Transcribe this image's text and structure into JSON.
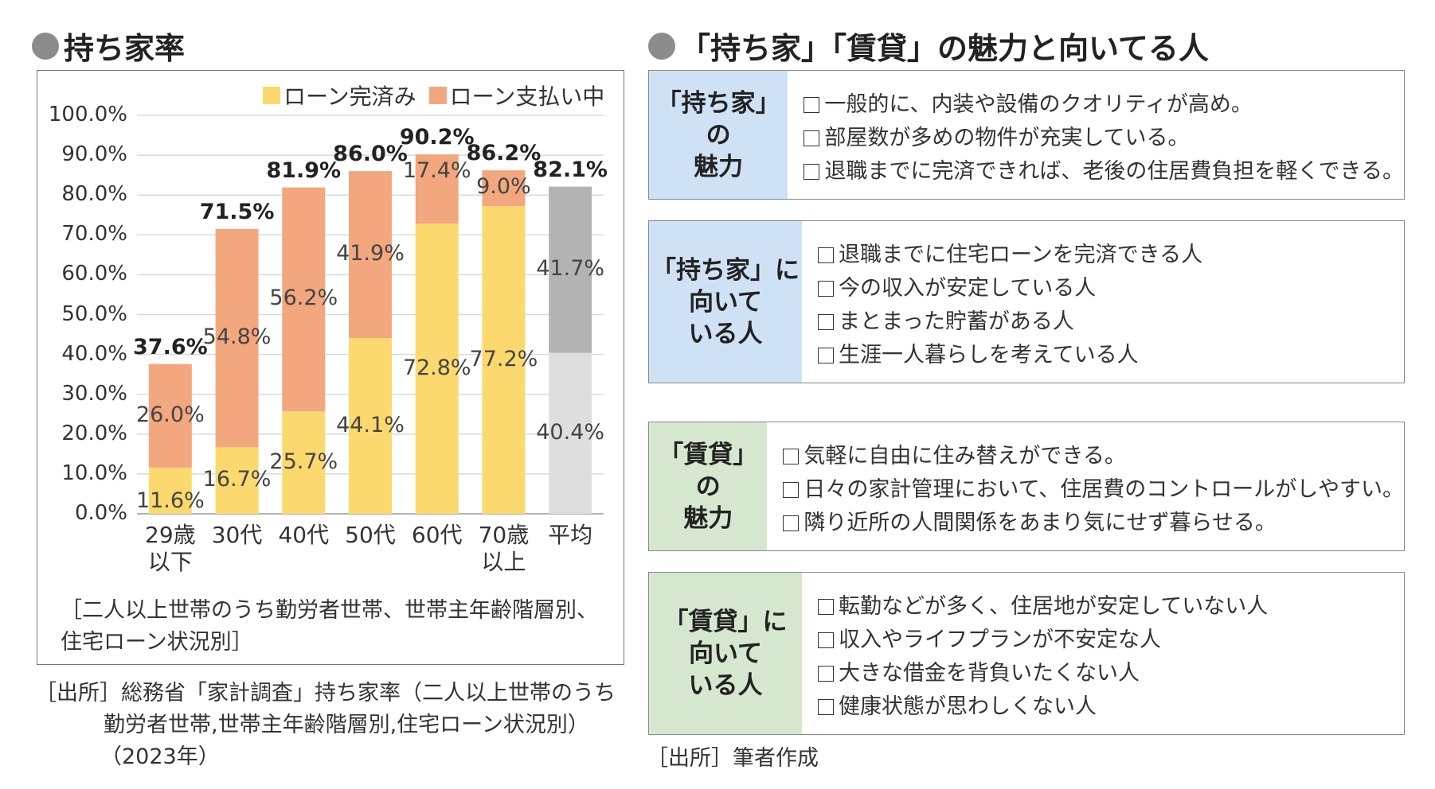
{
  "left_title": "持ち家率",
  "right_title": "「持ち家」「賃貸」の魅力と向いてる人",
  "chart_data": {
    "type": "bar",
    "stacked": true,
    "categories": [
      "29歳以下",
      "30代",
      "40代",
      "50代",
      "60代",
      "70歳以上",
      "平均"
    ],
    "category_lines": [
      [
        "29歳",
        "以下"
      ],
      [
        "30代"
      ],
      [
        "40代"
      ],
      [
        "50代"
      ],
      [
        "60代"
      ],
      [
        "70歳",
        "以上"
      ],
      [
        "平均"
      ]
    ],
    "series": [
      {
        "name": "ローン完済み",
        "values": [
          11.6,
          16.7,
          25.7,
          44.1,
          72.8,
          77.2,
          40.4
        ],
        "labels": [
          "11.6%",
          "16.7%",
          "25.7%",
          "44.1%",
          "72.8%",
          "77.2%",
          "40.4%"
        ]
      },
      {
        "name": "ローン支払い中",
        "values": [
          26.0,
          54.8,
          56.2,
          41.9,
          17.4,
          9.0,
          41.7
        ],
        "labels": [
          "26.0%",
          "54.8%",
          "56.2%",
          "41.9%",
          "17.4%",
          "9.0%",
          "41.7%"
        ]
      }
    ],
    "totals": [
      "37.6%",
      "71.5%",
      "81.9%",
      "86.0%",
      "90.2%",
      "86.2%",
      "82.1%"
    ],
    "yticks": [
      "100.0%",
      "90.0%",
      "80.0%",
      "70.0%",
      "60.0%",
      "50.0%",
      "40.0%",
      "30.0%",
      "20.0%",
      "10.0%",
      "0.0%"
    ],
    "ylim": [
      0,
      100
    ],
    "grid": true,
    "legend": "top-right",
    "colors": {
      "paid": "#fcd96e",
      "paying": "#f2a77e",
      "avg_paid": "#dedede",
      "avg_paying": "#b3b3b3"
    }
  },
  "chart_note": [
    "［二人以上世帯のうち勤労者世帯、世帯主年齢階層別、",
    "住宅ローン状況別］"
  ],
  "source_left": [
    "［出所］総務省「家計調査」持ち家率（二人以上世帯のうち",
    "勤労者世帯,世帯主年齢階層別,住宅ローン状況別）",
    "（2023年）"
  ],
  "cards": [
    {
      "head": [
        "「持ち家」の",
        "魅力"
      ],
      "items": [
        "一般的に、内装や設備のクオリティが高め。",
        "部屋数が多めの物件が充実している。",
        "退職までに完済できれば、老後の住居費負担を軽くできる。"
      ]
    },
    {
      "head": [
        "「持ち家」に",
        "向いて",
        "いる人"
      ],
      "items": [
        "退職までに住宅ローンを完済できる人",
        "今の収入が安定している人",
        "まとまった貯蓄がある人",
        "生涯一人暮らしを考えている人"
      ]
    },
    {
      "head": [
        "「賃貸」の",
        "魅力"
      ],
      "items": [
        "気軽に自由に住み替えができる。",
        "日々の家計管理において、住居費のコントロールがしやすい。",
        "隣り近所の人間関係をあまり気にせず暮らせる。"
      ]
    },
    {
      "head": [
        "「賃貸」に",
        "向いて",
        "いる人"
      ],
      "items": [
        "転勤などが多く、住居地が安定していない人",
        "収入やライフプランが不安定な人",
        "大きな借金を背負いたくない人",
        "健康状態が思わしくない人"
      ]
    }
  ],
  "source_right": "［出所］筆者作成"
}
